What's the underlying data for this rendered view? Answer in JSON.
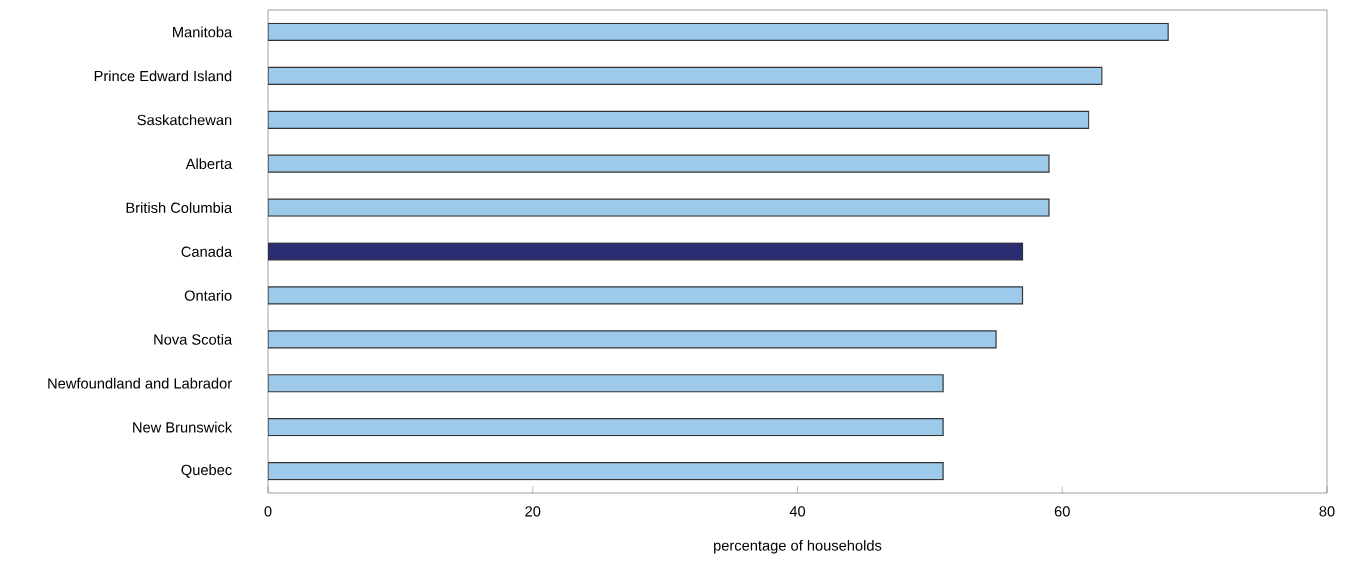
{
  "chart_data": {
    "type": "bar",
    "orientation": "horizontal",
    "xlabel": "percentage of households",
    "categories": [
      "Manitoba",
      "Prince Edward Island",
      "Saskatchewan",
      "Alberta",
      "British Columbia",
      "Canada",
      "Ontario",
      "Nova Scotia",
      "Newfoundland and Labrador",
      "New Brunswick",
      "Quebec"
    ],
    "values": [
      68,
      63,
      62,
      59,
      59,
      57,
      57,
      55,
      51,
      51,
      51
    ],
    "colors": [
      "#9dc9eb",
      "#9dc9eb",
      "#9dc9eb",
      "#9dc9eb",
      "#9dc9eb",
      "#2b2d73",
      "#9dc9eb",
      "#9dc9eb",
      "#9dc9eb",
      "#9dc9eb",
      "#9dc9eb"
    ],
    "xlim": [
      0,
      80
    ],
    "xticks": [
      0,
      20,
      40,
      60,
      80
    ]
  }
}
